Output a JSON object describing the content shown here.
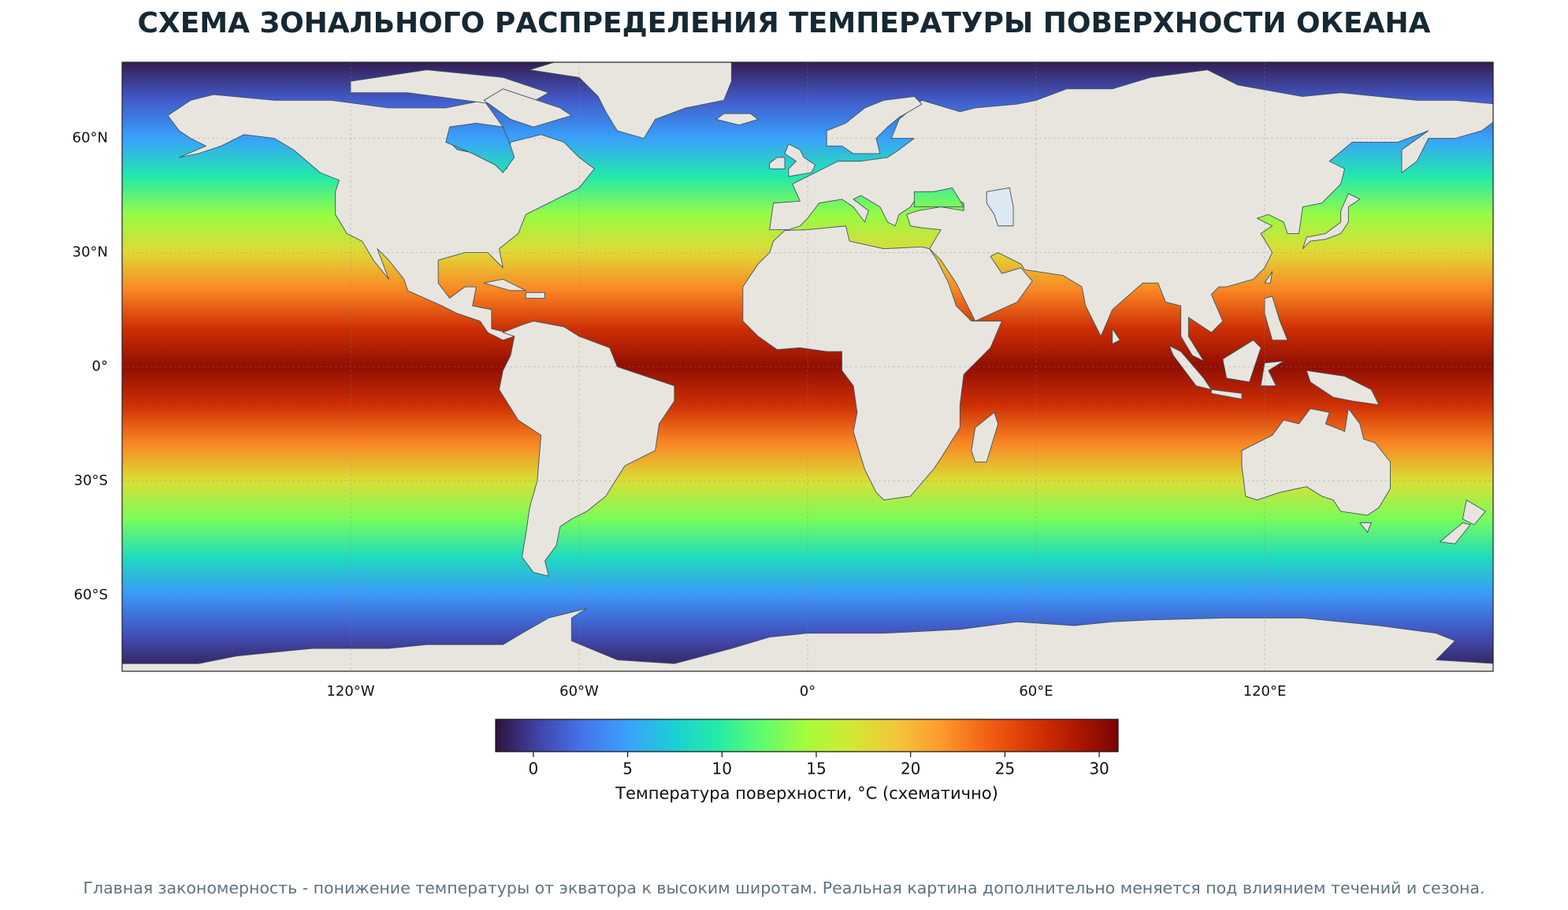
{
  "chart_data": {
    "type": "map",
    "title": "СХЕМА ЗОНАЛЬНОГО РАСПРЕДЕЛЕНИЯ ТЕМПЕРАТУРЫ ПОВЕРХНОСТИ ОКЕАНА",
    "xlim": [
      -180,
      180
    ],
    "ylim": [
      -80,
      80
    ],
    "xticks": [
      {
        "value": -120,
        "label": "120°W"
      },
      {
        "value": -60,
        "label": "60°W"
      },
      {
        "value": 0,
        "label": "0°"
      },
      {
        "value": 60,
        "label": "60°E"
      },
      {
        "value": 120,
        "label": "120°E"
      }
    ],
    "yticks": [
      {
        "value": 60,
        "label": "60°N"
      },
      {
        "value": 30,
        "label": "30°N"
      },
      {
        "value": 0,
        "label": "0°"
      },
      {
        "value": -30,
        "label": "30°S"
      },
      {
        "value": -60,
        "label": "60°S"
      }
    ],
    "grid": true,
    "sst_profile": {
      "lat": [
        80,
        70,
        60,
        50,
        40,
        30,
        20,
        10,
        0,
        -10,
        -20,
        -30,
        -40,
        -50,
        -60,
        -70,
        -80
      ],
      "temp": [
        -1.5,
        1.5,
        5,
        9.5,
        14,
        18,
        22.5,
        27,
        30,
        27,
        22.5,
        17.5,
        13,
        8.5,
        4.5,
        1,
        -1.5
      ]
    },
    "colormap": [
      "#30123b",
      "#4145ab",
      "#4675ed",
      "#39a2fc",
      "#1bcfd4",
      "#24eca6",
      "#61fc6c",
      "#a4fc3b",
      "#d1e834",
      "#f3c63a",
      "#fe9b2d",
      "#f36315",
      "#d93806",
      "#b11901",
      "#7a0403"
    ],
    "colorbar": {
      "lim": [
        -2,
        31
      ],
      "ticks": [
        0,
        5,
        10,
        15,
        20,
        25,
        30
      ],
      "label": "Температура поверхности, °C (схематично)"
    },
    "footnote": "Главная закономерность - понижение температуры от экватора к высоким широтам. Реальная картина дополнительно меняется под влиянием течений и сезона."
  }
}
